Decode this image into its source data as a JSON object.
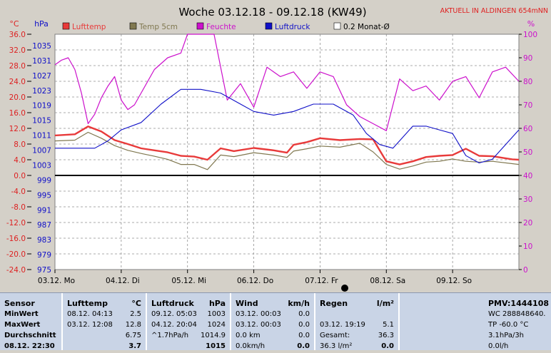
{
  "header": {
    "title": "Woche 03.12.18 - 09.12.18 (KW49)",
    "station": "AKTUELL IN ALDINGEN 654mNN"
  },
  "colors": {
    "lufttemp": "#e83a3a",
    "temp5cm": "#807850",
    "feuchte": "#cc10cc",
    "luftdruck": "#1010c8",
    "monat": "#404040",
    "celsius_axis": "#dd2222",
    "hpa_axis": "#1010c8",
    "pct_axis": "#cc10cc"
  },
  "chart_data": {
    "type": "line",
    "title": "Woche 03.12.18 - 09.12.18 (KW49)",
    "x_range": [
      "03.12. 00:00",
      "10.12. 00:00"
    ],
    "x_tick_labels": [
      "03.12. Mo",
      "04.12. Di",
      "05.12. Mi",
      "06.12. Do",
      "07.12. Fr",
      "08.12. Sa",
      "09.12. So"
    ],
    "left_axis": {
      "unit": "°C",
      "range": [
        -24,
        36
      ],
      "ticks": [
        "36.0",
        "32.0",
        "28.0",
        "24.0",
        "20.0",
        "16.0",
        "12.0",
        "8.0",
        "4.0",
        "0.0",
        "-4.0",
        "-8.0",
        "-12.0",
        "-16.0",
        "-20.0",
        "-24.0"
      ]
    },
    "pressure_axis": {
      "unit": "hPa",
      "range": [
        975,
        1039
      ],
      "ticks": [
        "1035",
        "1031",
        "1027",
        "1023",
        "1019",
        "1015",
        "1011",
        "1007",
        "1003",
        "999",
        "995",
        "991",
        "987",
        "983",
        "979",
        "975"
      ]
    },
    "right_axis": {
      "unit": "%",
      "range": [
        0,
        100
      ],
      "ticks": [
        "100",
        "90",
        "80",
        "70",
        "60",
        "50",
        "40",
        "30",
        "20",
        "10",
        "0"
      ]
    },
    "legend": [
      "Lufttemp",
      "Temp 5cm",
      "Feuchte",
      "Luftdruck",
      "0.2 Monat-Ø"
    ],
    "series": [
      {
        "name": "Lufttemp",
        "axis": "celsius",
        "x_days": [
          0,
          0.3,
          0.5,
          0.7,
          0.9,
          1.1,
          1.3,
          1.5,
          1.7,
          1.9,
          2.1,
          2.3,
          2.5,
          2.7,
          3.0,
          3.3,
          3.5,
          3.6,
          3.8,
          4.0,
          4.3,
          4.6,
          4.8,
          5.0,
          5.2,
          5.4,
          5.6,
          5.8,
          6.0,
          6.2,
          6.4,
          6.6,
          6.9,
          7.0
        ],
        "values": [
          10.2,
          10.5,
          12.5,
          11.2,
          9.0,
          8.0,
          6.9,
          6.4,
          5.9,
          5.0,
          4.8,
          4.0,
          6.9,
          6.2,
          7.0,
          6.4,
          5.8,
          7.8,
          8.5,
          9.5,
          9.0,
          9.3,
          9.2,
          3.6,
          2.8,
          3.6,
          4.7,
          5.0,
          5.2,
          6.8,
          5.0,
          4.9,
          4.1,
          4.0
        ]
      },
      {
        "name": "Temp 5cm",
        "axis": "celsius",
        "x_days": [
          0,
          0.3,
          0.5,
          0.7,
          0.9,
          1.1,
          1.3,
          1.5,
          1.7,
          1.9,
          2.1,
          2.3,
          2.5,
          2.7,
          3.0,
          3.3,
          3.5,
          3.6,
          3.8,
          4.0,
          4.3,
          4.6,
          4.8,
          5.0,
          5.2,
          5.4,
          5.6,
          5.8,
          6.0,
          6.2,
          6.4,
          6.6,
          6.9,
          7.0
        ],
        "values": [
          8.8,
          9.0,
          11.0,
          9.5,
          7.6,
          6.4,
          5.6,
          4.9,
          4.1,
          2.8,
          2.8,
          1.5,
          5.2,
          4.8,
          5.8,
          5.2,
          4.6,
          6.2,
          6.8,
          7.5,
          7.2,
          8.2,
          6.0,
          2.8,
          1.6,
          2.4,
          3.4,
          3.6,
          4.2,
          3.6,
          3.4,
          3.6,
          3.0,
          2.8
        ]
      },
      {
        "name": "Feuchte",
        "axis": "percent",
        "x_days": [
          0,
          0.1,
          0.2,
          0.3,
          0.4,
          0.5,
          0.6,
          0.7,
          0.8,
          0.9,
          1.0,
          1.1,
          1.2,
          1.3,
          1.5,
          1.7,
          1.9,
          2.0,
          2.2,
          2.4,
          2.6,
          2.8,
          3.0,
          3.2,
          3.4,
          3.6,
          3.8,
          4.0,
          4.2,
          4.4,
          4.6,
          4.8,
          5.0,
          5.2,
          5.4,
          5.6,
          5.8,
          6.0,
          6.2,
          6.4,
          6.6,
          6.8,
          7.0
        ],
        "values": [
          87,
          89,
          90,
          85,
          75,
          62,
          66,
          73,
          78,
          82,
          72,
          68,
          70,
          75,
          85,
          90,
          92,
          100,
          100,
          100,
          72,
          79,
          69,
          86,
          82,
          84,
          77,
          84,
          82,
          70,
          65,
          62,
          59,
          81,
          76,
          78,
          72,
          80,
          82,
          73,
          84,
          86,
          80
        ]
      },
      {
        "name": "Luftdruck",
        "axis": "hpa",
        "x_days": [
          0,
          0.3,
          0.6,
          0.8,
          1.0,
          1.3,
          1.6,
          1.9,
          2.2,
          2.5,
          2.8,
          3.0,
          3.3,
          3.6,
          3.9,
          4.2,
          4.5,
          4.7,
          4.9,
          5.1,
          5.4,
          5.6,
          5.8,
          6.0,
          6.2,
          6.4,
          6.6,
          6.8,
          7.0
        ],
        "values": [
          1008,
          1008,
          1008,
          1010,
          1013,
          1015,
          1020,
          1024,
          1024,
          1023,
          1020,
          1018,
          1017,
          1018,
          1020,
          1020,
          1017,
          1012,
          1009,
          1008,
          1014,
          1014,
          1013,
          1012,
          1006,
          1004,
          1005,
          1009,
          1013
        ]
      }
    ]
  },
  "panel": {
    "sensor": {
      "title": "Sensor",
      "rows": [
        "MinWert",
        "MaxWert",
        "Durchschnitt",
        "08.12. 22:30"
      ]
    },
    "lufttemp": {
      "title": "Lufttemp",
      "unit": "°C",
      "rows": [
        {
          "a": "08.12.  04:13",
          "v": "2.5"
        },
        {
          "a": "03.12.  12:08",
          "v": "12.8"
        },
        {
          "a": "",
          "v": "6.75"
        },
        {
          "a": "",
          "v": "3.7"
        }
      ]
    },
    "luftdruck": {
      "title": "Luftdruck",
      "unit": "hPa",
      "rows": [
        {
          "a": "09.12.  05:03",
          "v": "1003"
        },
        {
          "a": "04.12.  20:04",
          "v": "1024"
        },
        {
          "a": "^1.7hPa/h",
          "v": "1014.9"
        },
        {
          "a": "",
          "v": "1015"
        }
      ]
    },
    "wind": {
      "title": "Wind",
      "unit": "km/h",
      "rows": [
        {
          "a": "03.12.  00:03",
          "v": "0.0"
        },
        {
          "a": "03.12.  00:03",
          "v": "0.0"
        },
        {
          "a": "0.0 km",
          "v": "0.0"
        },
        {
          "a": "0.0km/h",
          "v": "0.0"
        }
      ]
    },
    "regen": {
      "title": "Regen",
      "unit": "l/m²",
      "rows": [
        {
          "a": "",
          "v": ""
        },
        {
          "a": "03.12.  19:19",
          "v": "5.1"
        },
        {
          "a": "Gesamt:",
          "v": "36.3"
        },
        {
          "a": "36.3 l/m²",
          "v": "0.0"
        }
      ]
    },
    "pmv": {
      "title": "PMV:1444108",
      "rows": [
        "WC 288848640.",
        "TP -60.0 °C",
        "3.1hPa/3h",
        "0.0l/h"
      ]
    }
  }
}
